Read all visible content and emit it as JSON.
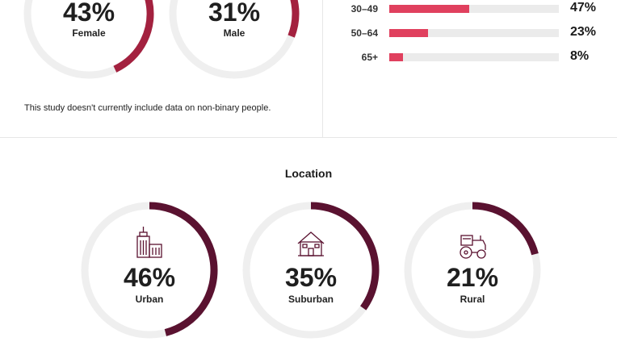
{
  "gender": [
    {
      "value_label": "43%",
      "label": "Female",
      "value": 43
    },
    {
      "value_label": "31%",
      "label": "Male",
      "value": 31
    }
  ],
  "gender_note": "This study doesn't currently include data on non-binary people.",
  "age": [
    {
      "label": "30–49",
      "value": 47,
      "value_label": "47%"
    },
    {
      "label": "50–64",
      "value": 23,
      "value_label": "23%"
    },
    {
      "label": "65+",
      "value": 8,
      "value_label": "8%"
    }
  ],
  "location_title": "Location",
  "location": [
    {
      "value_label": "46%",
      "label": "Urban",
      "value": 46,
      "icon": "city-buildings-icon"
    },
    {
      "value_label": "35%",
      "label": "Suburban",
      "value": 35,
      "icon": "house-icon"
    },
    {
      "value_label": "21%",
      "label": "Rural",
      "value": 21,
      "icon": "tractor-icon"
    }
  ],
  "colors": {
    "gender_arc": "#a3213f",
    "location_arc": "#5a1230",
    "track": "#efefef",
    "bar_fill": "#e0405e",
    "bar_track": "#ebebeb"
  },
  "chart_data": [
    {
      "type": "pie",
      "categories": [
        "Female",
        "Male"
      ],
      "values": [
        43,
        31
      ]
    },
    {
      "type": "bar",
      "categories": [
        "30–49",
        "50–64",
        "65+"
      ],
      "values": [
        47,
        23,
        8
      ],
      "ylim": [
        0,
        100
      ]
    },
    {
      "type": "pie",
      "title": "Location",
      "categories": [
        "Urban",
        "Suburban",
        "Rural"
      ],
      "values": [
        46,
        35,
        21
      ]
    }
  ]
}
